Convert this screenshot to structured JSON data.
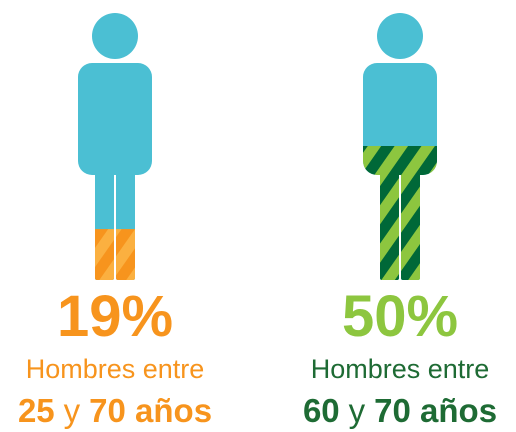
{
  "chart_data": {
    "type": "pictogram",
    "values": [
      19,
      50
    ],
    "value_labels": [
      "19%",
      "50%"
    ],
    "captions": [
      "Hombres entre",
      "Hombres entre"
    ],
    "ranges": [
      [
        "25",
        "y",
        "70 años"
      ],
      [
        "60",
        "y",
        "70 años"
      ]
    ],
    "figure_color": "#4bbfd3",
    "colors": [
      "#f7941d",
      "#8dc63f"
    ],
    "stripe_colors": [
      "#fbb040",
      "#006838"
    ],
    "caption_colors": [
      "#f7941d",
      "#1e6b34"
    ],
    "range_colors": [
      "#f7941d",
      "#1e6b34"
    ]
  }
}
